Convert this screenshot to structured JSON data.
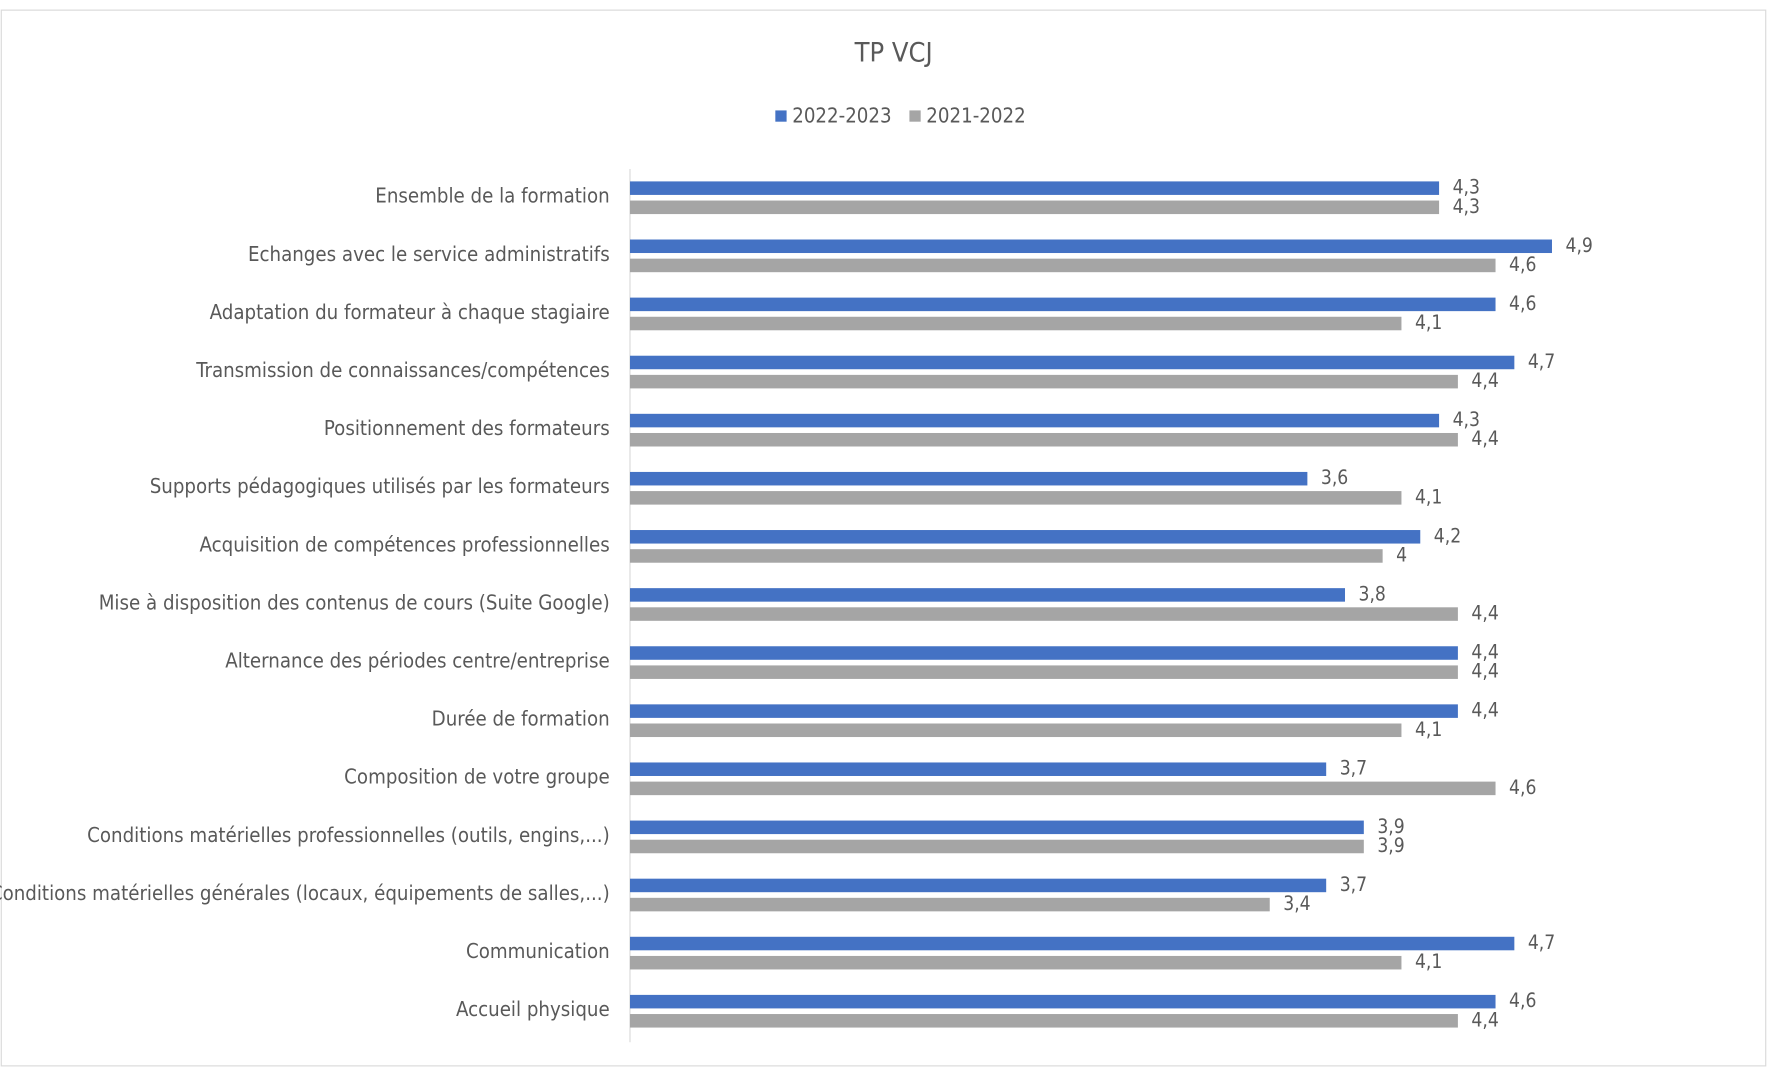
{
  "chart_data": {
    "type": "hbar",
    "title": "TP VCJ",
    "categories": [
      "Ensemble de la formation",
      "Echanges avec le service administratifs",
      "Adaptation du formateur à chaque stagiaire",
      "Transmission de connaissances/compétences",
      "Positionnement des formateurs",
      "Supports pédagogiques utilisés par les formateurs",
      "Acquisition de compétences professionnelles",
      "Mise à disposition des contenus de cours (Suite Google)",
      "Alternance des périodes centre/entreprise",
      "Durée de formation",
      "Composition de votre groupe",
      "Conditions matérielles professionnelles (outils, engins,...)",
      "Conditions matérielles générales (locaux, équipements de salles,...)",
      "Communication",
      "Accueil physique"
    ],
    "series": [
      {
        "name": "2022-2023",
        "color": "#4472c4",
        "values": [
          4.3,
          4.9,
          4.6,
          4.7,
          4.3,
          3.6,
          4.2,
          3.8,
          4.4,
          4.4,
          3.7,
          3.9,
          3.7,
          4.7,
          4.6
        ],
        "value_labels": [
          "4,3",
          "4,9",
          "4,6",
          "4,7",
          "4,3",
          "3,6",
          "4,2",
          "3,8",
          "4,4",
          "4,4",
          "3,7",
          "3,9",
          "3,7",
          "4,7",
          "4,6"
        ]
      },
      {
        "name": "2021-2022",
        "color": "#a5a5a5",
        "values": [
          4.3,
          4.6,
          4.1,
          4.4,
          4.4,
          4.1,
          4,
          4.4,
          4.4,
          4.1,
          4.6,
          3.9,
          3.4,
          4.1,
          4.4
        ],
        "value_labels": [
          "4,3",
          "4,6",
          "4,1",
          "4,4",
          "4,4",
          "4,1",
          "4",
          "4,4",
          "4,4",
          "4,1",
          "4,6",
          "3,9",
          "3,4",
          "4,1",
          "4,4"
        ]
      }
    ],
    "xlim": [
      0,
      6
    ],
    "legend": "top"
  }
}
